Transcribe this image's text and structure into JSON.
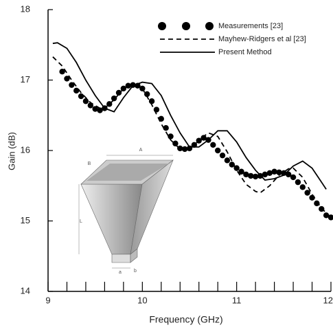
{
  "chart_data": {
    "type": "line",
    "xlabel": "Frequency (GHz)",
    "ylabel": "Gain (dB)",
    "xlim": [
      9,
      12
    ],
    "ylim": [
      14,
      18
    ],
    "xticks": [
      9,
      10,
      11,
      12
    ],
    "yticks": [
      14,
      15,
      16,
      17,
      18
    ],
    "xminor_ticks": [
      9.2,
      9.4,
      9.6,
      9.8,
      10.2,
      10.4,
      10.6,
      10.8,
      11.2,
      11.4,
      11.6,
      11.8
    ],
    "legend": "upper right",
    "annotations": [
      "A",
      "B",
      "L",
      "a",
      "b"
    ],
    "series": [
      {
        "name": "Measurements [23]",
        "color": "#000000",
        "style": "dots",
        "x": [
          9.15,
          9.2,
          9.25,
          9.3,
          9.35,
          9.4,
          9.45,
          9.5,
          9.55,
          9.6,
          9.65,
          9.7,
          9.75,
          9.8,
          9.85,
          9.9,
          9.95,
          10.0,
          10.05,
          10.1,
          10.15,
          10.2,
          10.25,
          10.3,
          10.35,
          10.4,
          10.45,
          10.5,
          10.55,
          10.6,
          10.65,
          10.7,
          10.75,
          10.8,
          10.85,
          10.9,
          10.95,
          11.0,
          11.05,
          11.1,
          11.15,
          11.2,
          11.25,
          11.3,
          11.35,
          11.4,
          11.45,
          11.5,
          11.55,
          11.6,
          11.65,
          11.7,
          11.75,
          11.8,
          11.85,
          11.9,
          11.95,
          12.0
        ],
        "values": [
          17.12,
          17.02,
          16.93,
          16.85,
          16.77,
          16.7,
          16.64,
          16.59,
          16.57,
          16.6,
          16.66,
          16.74,
          16.82,
          16.88,
          16.92,
          16.93,
          16.92,
          16.88,
          16.8,
          16.7,
          16.58,
          16.45,
          16.32,
          16.2,
          16.1,
          16.03,
          16.02,
          16.03,
          16.08,
          16.14,
          16.18,
          16.15,
          16.08,
          16.0,
          15.93,
          15.86,
          15.8,
          15.75,
          15.7,
          15.66,
          15.64,
          15.63,
          15.64,
          15.66,
          15.68,
          15.7,
          15.69,
          15.68,
          15.66,
          15.62,
          15.55,
          15.48,
          15.4,
          15.33,
          15.25,
          15.17,
          15.08,
          15.05
        ]
      },
      {
        "name": "Mayhew-Ridgers et al [23]",
        "color": "#000000",
        "style": "dashed",
        "x": [
          9.05,
          9.15,
          9.25,
          9.35,
          9.45,
          9.55,
          9.6,
          9.7,
          9.8,
          9.9,
          10.0,
          10.1,
          10.2,
          10.3,
          10.4,
          10.45,
          10.55,
          10.65,
          10.7,
          10.8,
          10.9,
          11.0,
          11.1,
          11.2,
          11.25,
          11.35,
          11.45,
          11.55,
          11.6,
          11.7,
          11.8,
          11.9,
          12.0
        ],
        "values": [
          17.33,
          17.2,
          17.0,
          16.82,
          16.68,
          16.6,
          16.6,
          16.72,
          16.88,
          16.95,
          16.88,
          16.65,
          16.38,
          16.15,
          16.02,
          16.0,
          16.08,
          16.2,
          16.25,
          16.2,
          15.98,
          15.72,
          15.52,
          15.42,
          15.4,
          15.5,
          15.65,
          15.74,
          15.75,
          15.62,
          15.38,
          15.18,
          15.05
        ]
      },
      {
        "name": "Present Method",
        "color": "#000000",
        "style": "solid",
        "x": [
          9.05,
          9.1,
          9.2,
          9.3,
          9.4,
          9.5,
          9.6,
          9.7,
          9.8,
          9.9,
          10.0,
          10.1,
          10.2,
          10.3,
          10.4,
          10.5,
          10.6,
          10.7,
          10.8,
          10.9,
          11.0,
          11.1,
          11.2,
          11.3,
          11.4,
          11.5,
          11.6,
          11.7,
          11.8,
          11.9,
          11.95
        ],
        "values": [
          17.52,
          17.53,
          17.45,
          17.25,
          17.0,
          16.78,
          16.6,
          16.55,
          16.75,
          16.92,
          16.97,
          16.95,
          16.78,
          16.5,
          16.25,
          16.05,
          16.05,
          16.15,
          16.28,
          16.28,
          16.12,
          15.9,
          15.72,
          15.58,
          15.6,
          15.65,
          15.78,
          15.85,
          15.75,
          15.55,
          15.45
        ]
      }
    ]
  }
}
